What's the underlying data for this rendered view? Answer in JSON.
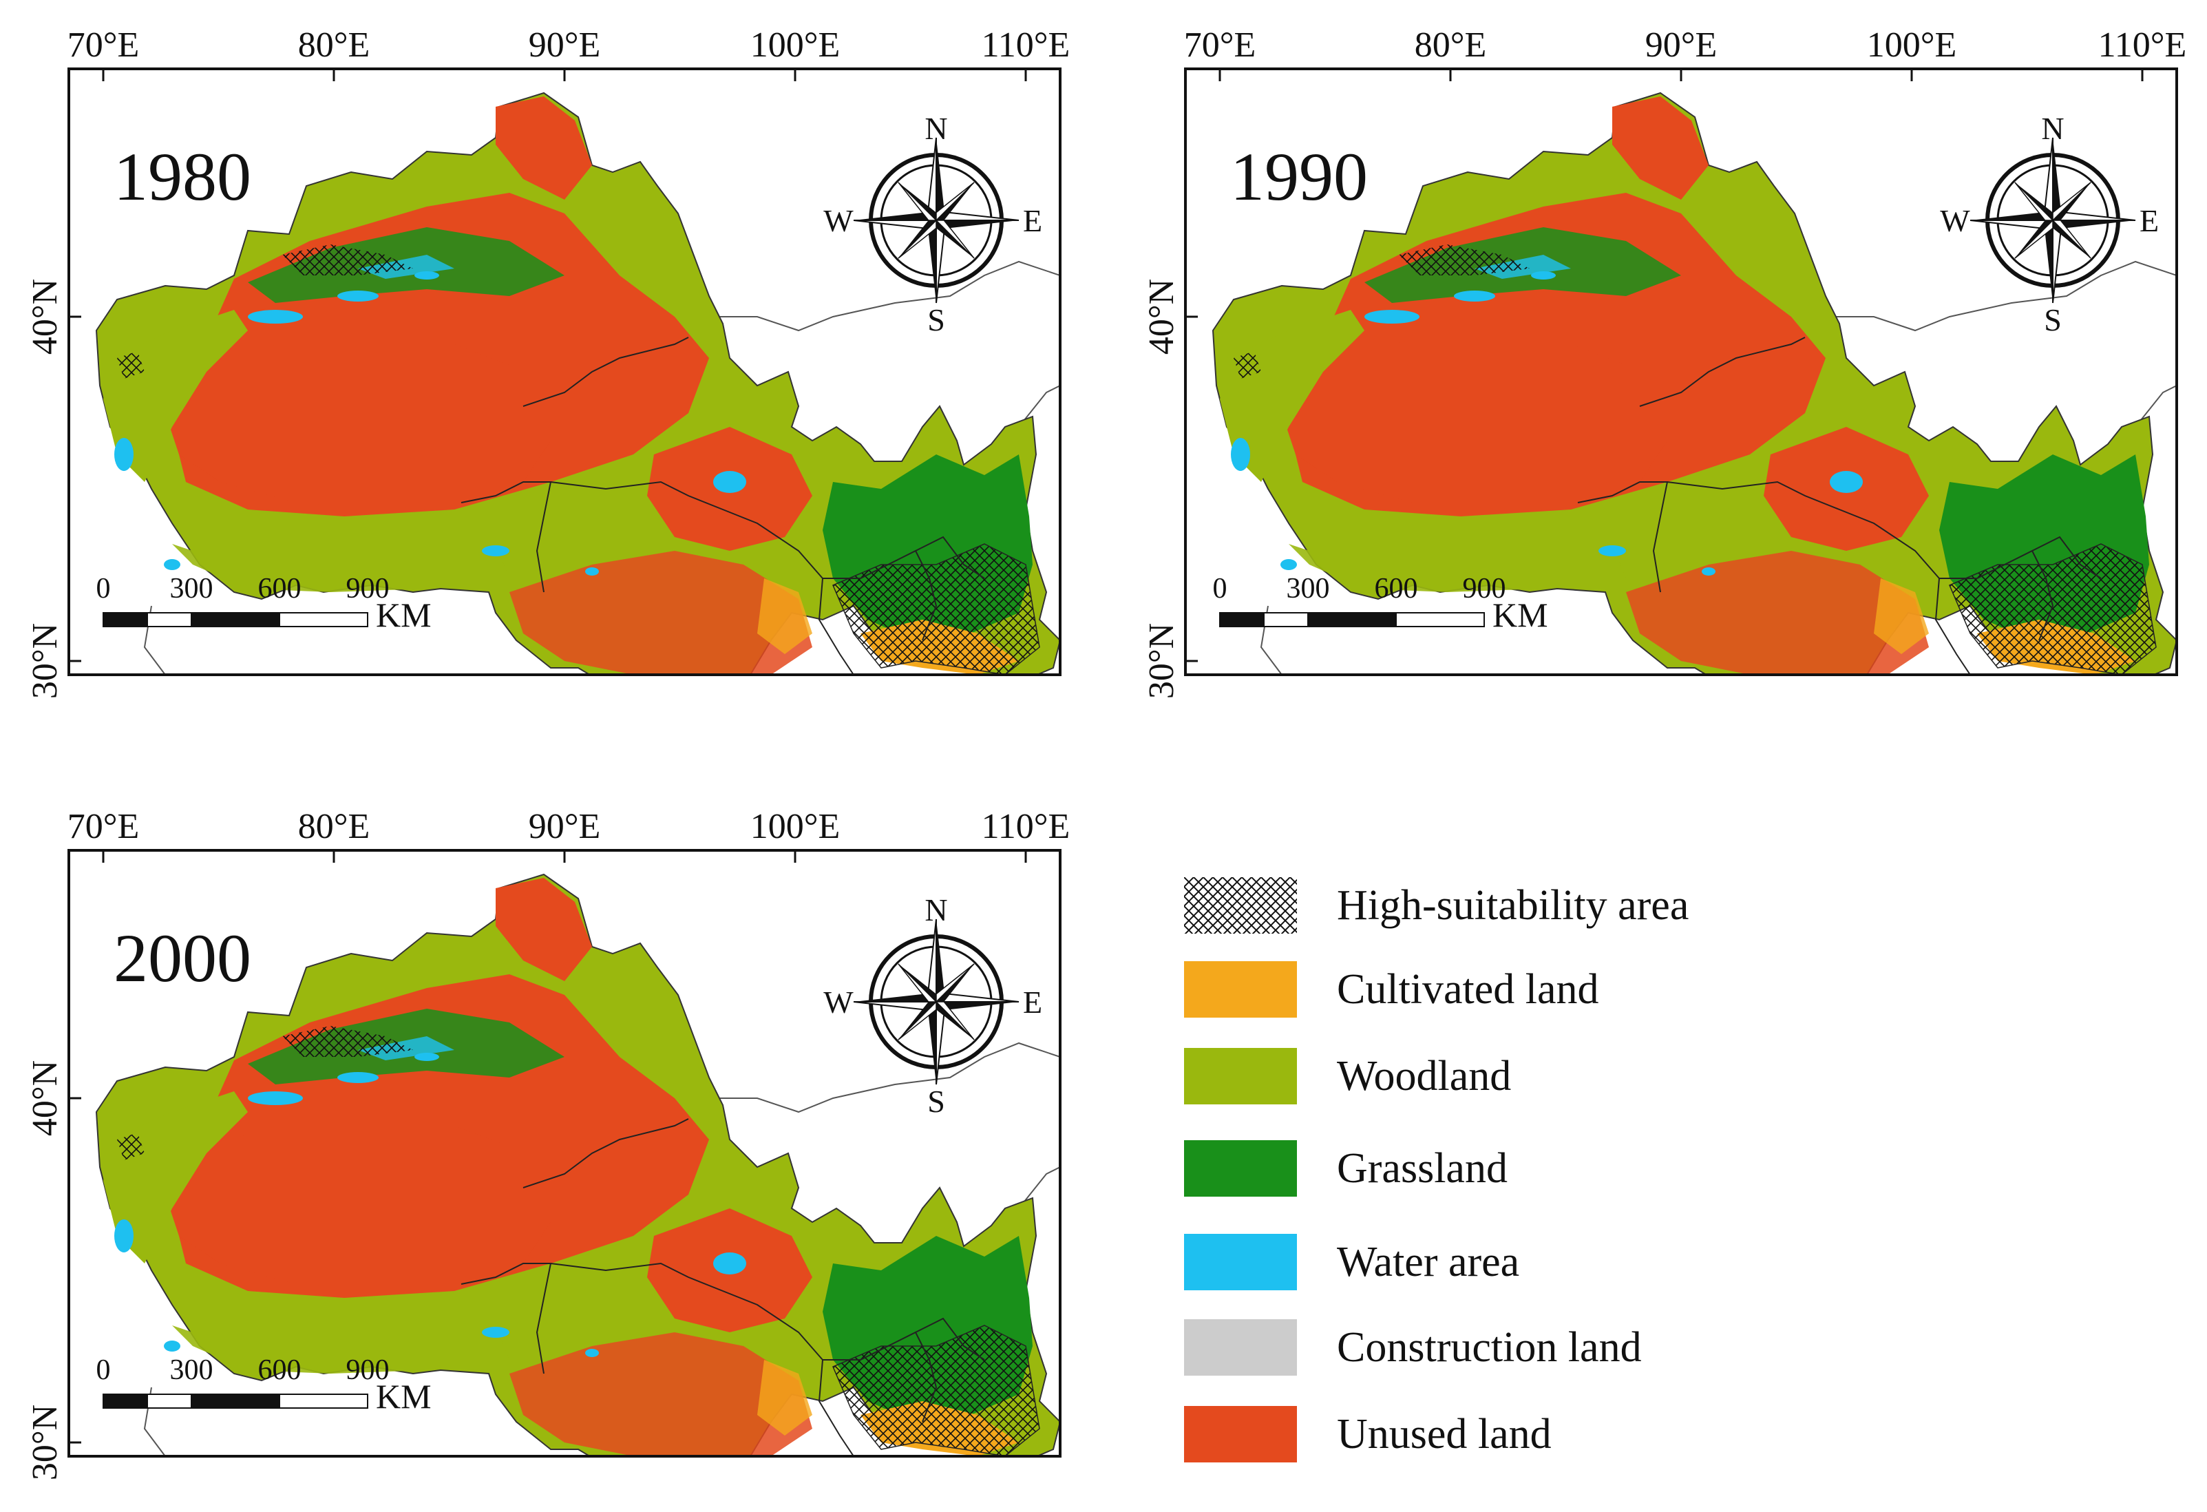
{
  "colors": {
    "cultivated": "#f4a81c",
    "woodland": "#9ab80e",
    "grassland": "#19901a",
    "water": "#1ec0f0",
    "construction": "#cccccc",
    "unused": "#e44a1e",
    "border": "#333333",
    "frame": "#111111"
  },
  "axes": {
    "lon_labels": [
      "70°E",
      "80°E",
      "90°E",
      "100°E",
      "110°E"
    ],
    "lat_labels": [
      "40°N",
      "30°N"
    ]
  },
  "scale_bar": {
    "ticks": [
      "0",
      "300",
      "600",
      "900"
    ],
    "unit": "KM"
  },
  "compass": {
    "n": "N",
    "s": "S",
    "e": "E",
    "w": "W"
  },
  "panels": [
    {
      "year": "1980"
    },
    {
      "year": "1990"
    },
    {
      "year": "2000"
    }
  ],
  "legend": {
    "items": [
      {
        "label": "High-suitability area",
        "type": "hatch"
      },
      {
        "label": "Cultivated land",
        "color": "#f4a81c"
      },
      {
        "label": "Woodland",
        "color": "#9ab80e"
      },
      {
        "label": "Grassland",
        "color": "#19901a"
      },
      {
        "label": "Water area",
        "color": "#1ec0f0"
      },
      {
        "label": "Construction land",
        "color": "#cccccc"
      },
      {
        "label": "Unused land",
        "color": "#e44a1e"
      }
    ]
  }
}
